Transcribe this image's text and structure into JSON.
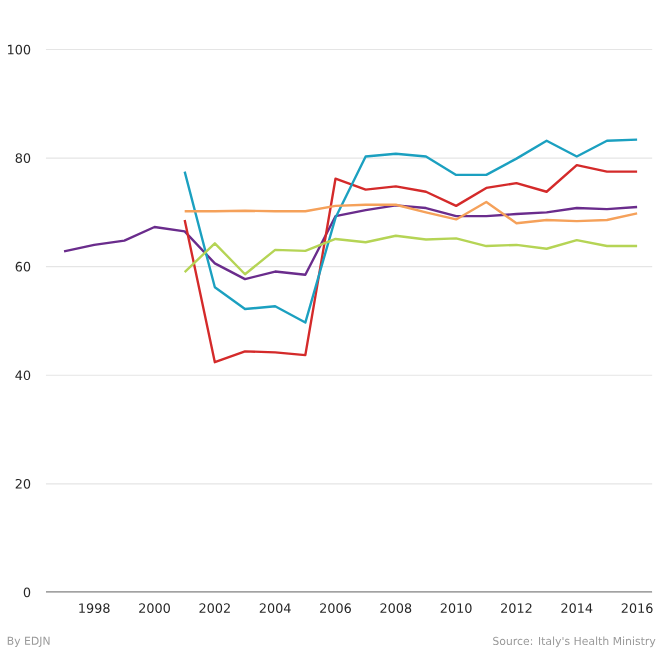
{
  "chart_data": {
    "type": "line",
    "x": [
      1997,
      1998,
      1999,
      2000,
      2001,
      2002,
      2003,
      2004,
      2005,
      2006,
      2007,
      2008,
      2009,
      2010,
      2011,
      2012,
      2013,
      2014,
      2015,
      2016
    ],
    "series": [
      {
        "color": "#6a2c8c",
        "values": [
          62.8,
          64,
          64.8,
          67.3,
          66.5,
          60.6,
          57.7,
          59.1,
          58.5,
          69.3,
          70.4,
          71.3,
          70.8,
          69.3,
          69.3,
          69.7,
          70,
          70.8,
          70.6,
          71
        ]
      },
      {
        "color": "#d42a2a",
        "values": [
          null,
          null,
          null,
          null,
          68.6,
          42.4,
          44.4,
          44.2,
          43.7,
          76.2,
          74.2,
          74.8,
          73.8,
          71.2,
          74.5,
          75.4,
          73.8,
          78.7,
          77.5,
          77.5
        ]
      },
      {
        "color": "#1ba0c0",
        "values": [
          null,
          null,
          null,
          null,
          77.5,
          56.2,
          52.2,
          52.7,
          49.7,
          69,
          80.3,
          80.8,
          80.3,
          76.9,
          76.9,
          79.9,
          83.2,
          80.3,
          83.2,
          83.4
        ]
      },
      {
        "color": "#f5a15a",
        "values": [
          null,
          null,
          null,
          null,
          70.2,
          70.2,
          70.3,
          70.2,
          70.2,
          71.2,
          71.4,
          71.4,
          70,
          68.7,
          71.9,
          68,
          68.6,
          68.4,
          68.6,
          69.8
        ]
      },
      {
        "color": "#b5d455",
        "values": [
          null,
          null,
          null,
          null,
          59,
          64.3,
          58.6,
          63.1,
          62.9,
          65.1,
          64.5,
          65.7,
          65,
          65.2,
          63.8,
          64,
          63.3,
          64.9,
          63.8,
          63.8
        ]
      }
    ],
    "xlim": [
      1996.4,
      2016.5
    ],
    "ylim": [
      0,
      100
    ],
    "xticks": [
      1998,
      2000,
      2002,
      2004,
      2006,
      2008,
      2010,
      2012,
      2014,
      2016
    ],
    "yticks": [
      0,
      20,
      40,
      60,
      80,
      100
    ],
    "grid": "y",
    "marker": "none",
    "line_style": "solid",
    "annotations": [
      "By EDJN",
      "Source: Italy's Health Ministry"
    ]
  }
}
